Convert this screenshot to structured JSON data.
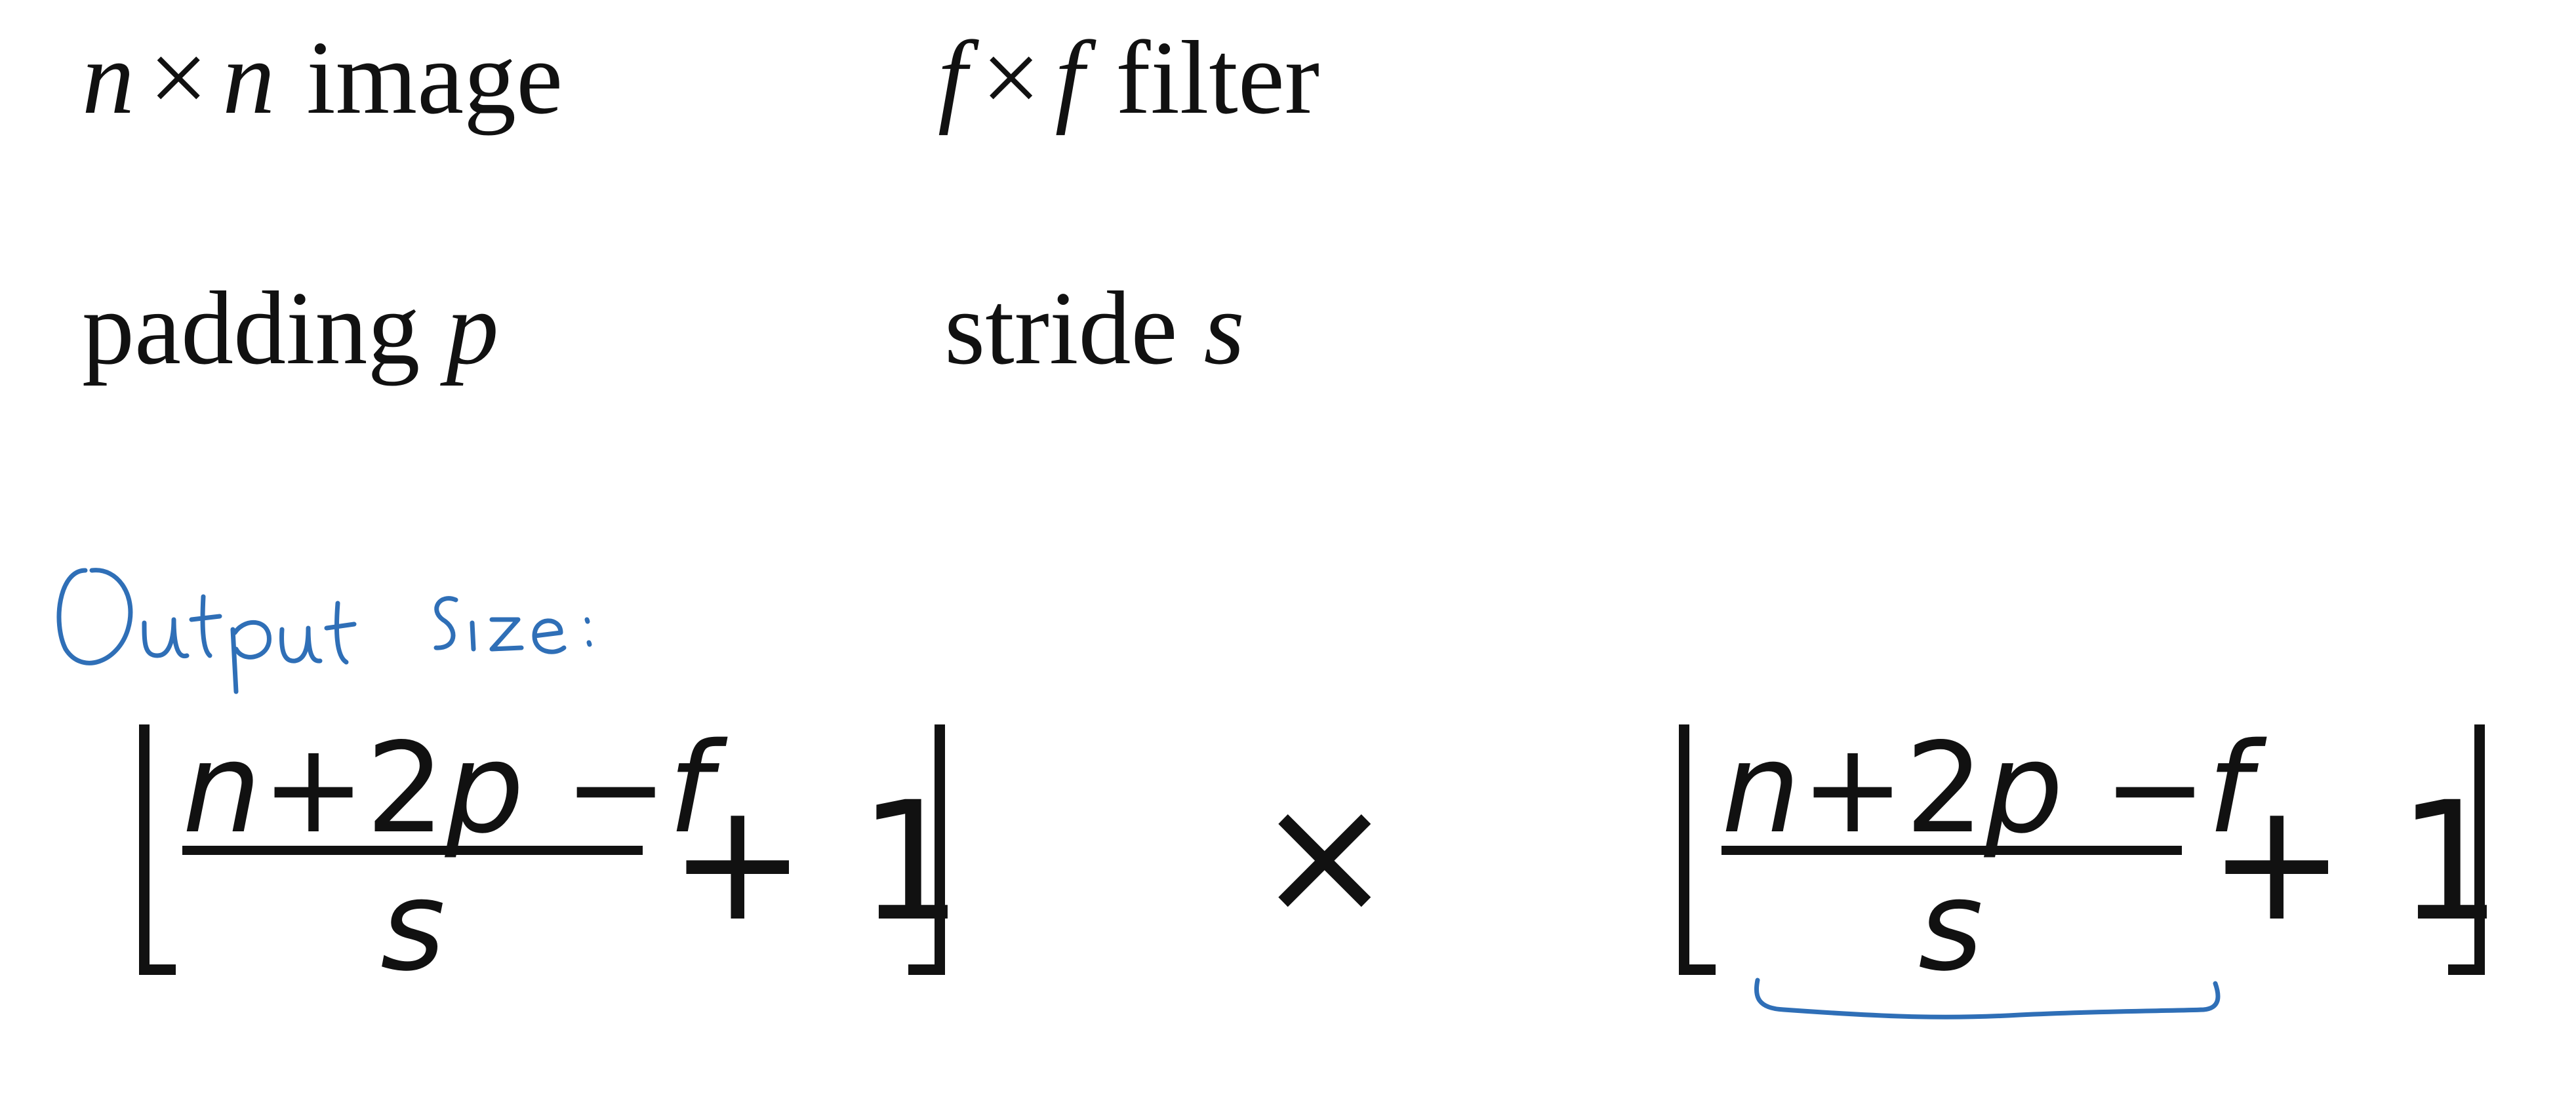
{
  "definitions": {
    "image": {
      "var": "n",
      "times": "×",
      "label": "image"
    },
    "filter": {
      "var": "f",
      "times": "×",
      "label": "filter"
    },
    "padding": {
      "label": "padding",
      "var": "p"
    },
    "stride": {
      "label": "stride",
      "var": "s"
    }
  },
  "annotation": {
    "text": "Output Size:",
    "color": "#2f6fb7"
  },
  "formula": {
    "numerator": {
      "n": "n",
      "plus_two": "+2",
      "p": "p",
      "minus": " −",
      "f": "f"
    },
    "denominator": "s",
    "plus_one": "+ 1",
    "times": "×"
  }
}
